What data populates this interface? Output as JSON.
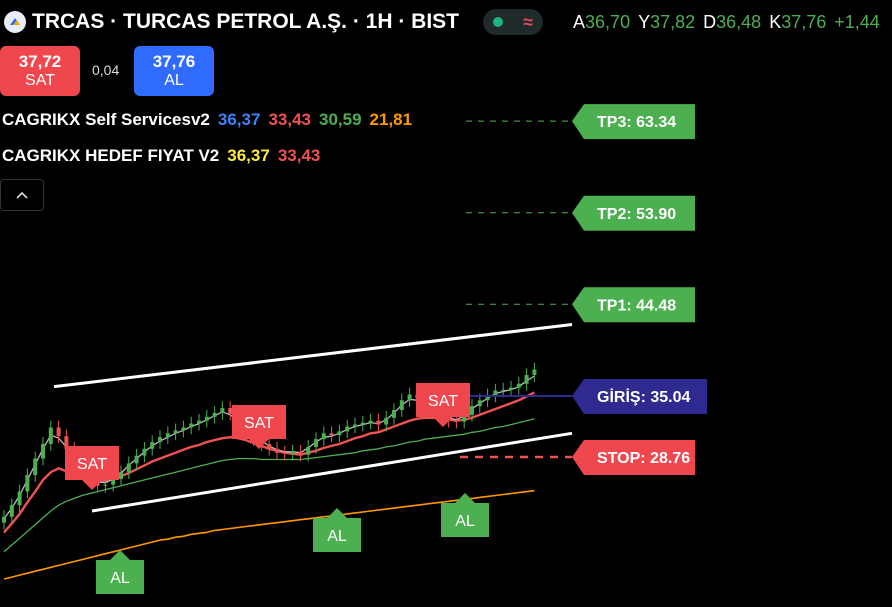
{
  "header": {
    "title": "TRCAS · TURCAS PETROL A.Ş. · 1H · BIST",
    "ohlc": [
      {
        "k": "A",
        "v": "36,70"
      },
      {
        "k": "Y",
        "v": "37,82"
      },
      {
        "k": "D",
        "v": "36,48"
      },
      {
        "k": "K",
        "v": "37,76"
      },
      {
        "k": "",
        "v": "+1,44"
      }
    ]
  },
  "trade": {
    "sell_price": "37,72",
    "sell_label": "SAT",
    "spread": "0,04",
    "buy_price": "37,76",
    "buy_label": "AL"
  },
  "indicators": [
    {
      "name": "CAGRIKX Self Servicesv2",
      "values": [
        {
          "text": "36,37",
          "color": "#3b82f6"
        },
        {
          "text": "33,43",
          "color": "#ef5350"
        },
        {
          "text": "30,59",
          "color": "#4caf50"
        },
        {
          "text": "21,81",
          "color": "#ff9800"
        }
      ]
    },
    {
      "name": "CAGRIKX HEDEF FIYAT V2",
      "values": [
        {
          "text": "36,37",
          "color": "#ffeb3b"
        },
        {
          "text": "33,43",
          "color": "#ef5350"
        }
      ]
    }
  ],
  "colors": {
    "up": "#4caf50",
    "down": "#ef5350",
    "sell": "#f0474f",
    "buy": "#4caf50",
    "entry": "#2e2a8f"
  },
  "chart_data": {
    "type": "line",
    "levels": [
      {
        "label": "TP3: 63.34",
        "value": 63.34,
        "kind": "tp"
      },
      {
        "label": "TP2: 53.90",
        "value": 53.9,
        "kind": "tp"
      },
      {
        "label": "TP1: 44.48",
        "value": 44.48,
        "kind": "tp"
      },
      {
        "label": "GİRİŞ: 35.04",
        "value": 35.04,
        "kind": "entry"
      },
      {
        "label": "STOP: 28.76",
        "value": 28.76,
        "kind": "stop"
      }
    ],
    "signals": [
      {
        "label": "SAT",
        "type": "sell"
      },
      {
        "label": "SAT",
        "type": "sell"
      },
      {
        "label": "SAT",
        "type": "sell"
      },
      {
        "label": "AL",
        "type": "buy"
      },
      {
        "label": "AL",
        "type": "buy"
      },
      {
        "label": "AL",
        "type": "buy"
      }
    ],
    "close": [
      22.6,
      23.8,
      25.2,
      26.9,
      28.6,
      30.1,
      31.8,
      30.9,
      29.6,
      28.2,
      27.3,
      26.4,
      25.8,
      25.9,
      26.5,
      27.2,
      28.1,
      28.9,
      29.6,
      30.3,
      30.8,
      31.2,
      31.5,
      31.8,
      32.2,
      32.5,
      32.9,
      33.3,
      33.8,
      33.2,
      32.4,
      31.5,
      30.6,
      30.1,
      29.6,
      29.2,
      29.1,
      29.3,
      29.0,
      29.8,
      30.6,
      31.2,
      31.0,
      31.4,
      31.9,
      32.1,
      32.3,
      32.5,
      32.1,
      32.8,
      33.6,
      34.6,
      35.2,
      34.8,
      34.1,
      33.6,
      33.0,
      32.5,
      32.4,
      33.1,
      34.0,
      34.6,
      35.1,
      35.6,
      35.7,
      35.9,
      36.3,
      37.2,
      37.76
    ],
    "ema_fast": [
      22.4,
      23.5,
      24.8,
      26.4,
      28.0,
      29.6,
      31.0,
      30.7,
      29.8,
      28.6,
      27.6,
      26.8,
      26.2,
      26.1,
      26.5,
      27.1,
      27.9,
      28.6,
      29.3,
      29.9,
      30.4,
      30.8,
      31.2,
      31.5,
      31.9,
      32.2,
      32.6,
      33.0,
      33.4,
      33.1,
      32.5,
      31.8,
      31.0,
      30.4,
      29.9,
      29.5,
      29.3,
      29.3,
      29.2,
      29.7,
      30.3,
      30.8,
      30.9,
      31.2,
      31.6,
      31.9,
      32.1,
      32.3,
      32.2,
      32.6,
      33.3,
      34.1,
      34.7,
      34.6,
      34.2,
      33.7,
      33.2,
      32.8,
      32.6,
      33.0,
      33.7,
      34.3,
      34.8,
      35.3,
      35.5,
      35.7,
      36.0,
      36.6,
      37.1
    ],
    "ema_mid": [
      21.0,
      21.9,
      22.9,
      24.1,
      25.2,
      26.4,
      27.2,
      27.6,
      27.3,
      27.0,
      26.6,
      26.3,
      26.2,
      26.3,
      26.5,
      26.8,
      27.1,
      27.5,
      27.9,
      28.3,
      28.6,
      28.9,
      29.2,
      29.5,
      29.8,
      30.0,
      30.3,
      30.5,
      30.7,
      30.8,
      30.7,
      30.5,
      30.2,
      29.9,
      29.6,
      29.4,
      29.2,
      29.1,
      29.0,
      29.2,
      29.4,
      29.7,
      29.9,
      30.1,
      30.4,
      30.7,
      30.9,
      31.2,
      31.3,
      31.6,
      31.9,
      32.2,
      32.5,
      32.7,
      32.8,
      32.8,
      32.7,
      32.6,
      32.5,
      32.6,
      32.8,
      33.1,
      33.4,
      33.7,
      34.0,
      34.3,
      34.6,
      35.0,
      35.4
    ],
    "ema_slow": [
      19.0,
      19.7,
      20.4,
      21.1,
      21.8,
      22.5,
      23.2,
      23.8,
      24.2,
      24.5,
      24.8,
      25.0,
      25.2,
      25.4,
      25.6,
      25.8,
      26.0,
      26.2,
      26.4,
      26.6,
      26.8,
      27.0,
      27.2,
      27.4,
      27.6,
      27.8,
      28.0,
      28.2,
      28.4,
      28.5,
      28.6,
      28.6,
      28.6,
      28.5,
      28.5,
      28.5,
      28.5,
      28.5,
      28.5,
      28.6,
      28.7,
      28.8,
      28.9,
      29.0,
      29.1,
      29.2,
      29.4,
      29.5,
      29.6,
      29.8,
      29.9,
      30.1,
      30.3,
      30.4,
      30.6,
      30.7,
      30.8,
      30.9,
      31.0,
      31.1,
      31.3,
      31.4,
      31.6,
      31.8,
      31.9,
      32.1,
      32.3,
      32.5,
      32.7
    ],
    "ema_long": [
      16.2,
      16.4,
      16.6,
      16.8,
      17.0,
      17.2,
      17.4,
      17.6,
      17.8,
      18.0,
      18.2,
      18.4,
      18.6,
      18.8,
      19.0,
      19.2,
      19.4,
      19.6,
      19.8,
      20.0,
      20.2,
      20.3,
      20.5,
      20.6,
      20.8,
      20.9,
      21.0,
      21.2,
      21.3,
      21.4,
      21.5,
      21.6,
      21.7,
      21.8,
      21.9,
      22.0,
      22.1,
      22.2,
      22.3,
      22.4,
      22.5,
      22.6,
      22.7,
      22.8,
      22.9,
      23.0,
      23.1,
      23.2,
      23.3,
      23.4,
      23.5,
      23.6,
      23.7,
      23.8,
      23.9,
      24.0,
      24.1,
      24.2,
      24.3,
      24.4,
      24.5,
      24.6,
      24.7,
      24.8,
      24.9,
      25.0,
      25.1,
      25.2,
      25.3
    ],
    "channel": {
      "upper": [
        [
          0,
          36.0
        ],
        [
          68,
          42.4
        ]
      ],
      "lower": [
        [
          5,
          23.2
        ],
        [
          68,
          31.2
        ]
      ]
    }
  }
}
